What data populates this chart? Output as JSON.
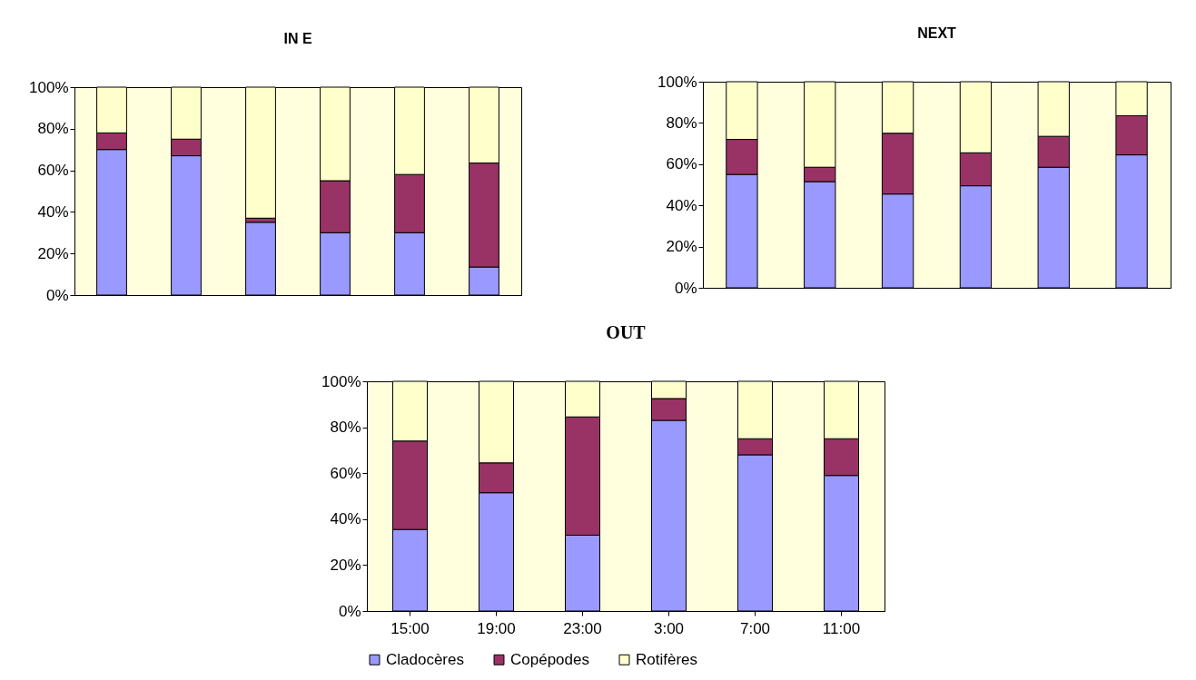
{
  "chart_data": [
    {
      "type": "bar",
      "title": "IN E",
      "stacked": true,
      "categories": [
        null,
        null,
        null,
        null,
        null,
        null
      ],
      "tick_labels": "y",
      "ylim": [
        0,
        100
      ],
      "yticks": [
        {
          "value": 0,
          "label": "0%"
        },
        {
          "value": 20,
          "label": "20%"
        },
        {
          "value": 40,
          "label": "40%"
        },
        {
          "value": 60,
          "label": "60%"
        },
        {
          "value": 80,
          "label": "80%"
        },
        {
          "value": 100,
          "label": "100%"
        }
      ],
      "series": [
        {
          "color": "#9999ff",
          "values": [
            70,
            67,
            35,
            30,
            30,
            13.5
          ]
        },
        {
          "color": "#993366",
          "values": [
            8,
            8,
            2,
            25,
            28,
            50
          ]
        },
        {
          "color": "#ffffcc",
          "values": [
            22,
            25,
            63,
            45,
            42,
            36.5
          ]
        }
      ]
    },
    {
      "type": "bar",
      "title": "NEXT",
      "stacked": true,
      "categories": [
        null,
        null,
        null,
        null,
        null,
        null
      ],
      "tick_labels": "y",
      "ylim": [
        0,
        100
      ],
      "yticks": [
        {
          "value": 0,
          "label": "0%"
        },
        {
          "value": 20,
          "label": "20%"
        },
        {
          "value": 40,
          "label": "40%"
        },
        {
          "value": 60,
          "label": "60%"
        },
        {
          "value": 80,
          "label": "80%"
        },
        {
          "value": 100,
          "label": "100%"
        }
      ],
      "series": [
        {
          "color": "#9999ff",
          "values": [
            55,
            51.5,
            45.5,
            49.5,
            58.5,
            64.5
          ]
        },
        {
          "color": "#993366",
          "values": [
            17,
            7,
            29.5,
            16,
            15,
            19
          ]
        },
        {
          "color": "#ffffcc",
          "values": [
            28,
            41.5,
            25,
            34.5,
            26.5,
            16.5
          ]
        }
      ]
    },
    {
      "type": "bar",
      "title": "OUT",
      "stacked": true,
      "categories": [
        "15:00",
        "19:00",
        "23:00",
        "3:00",
        "7:00",
        "11:00"
      ],
      "legend": "bottom",
      "ylim": [
        0,
        100
      ],
      "yticks": [
        {
          "value": 0,
          "label": "0%"
        },
        {
          "value": 20,
          "label": "20%"
        },
        {
          "value": 40,
          "label": "40%"
        },
        {
          "value": 60,
          "label": "60%"
        },
        {
          "value": 80,
          "label": "80%"
        },
        {
          "value": 100,
          "label": "100%"
        }
      ],
      "series": [
        {
          "name": "Cladocères",
          "color": "#9999ff",
          "values": [
            35.5,
            51.5,
            33,
            83,
            68,
            59
          ]
        },
        {
          "name": "Copépodes",
          "color": "#993366",
          "values": [
            38.5,
            13,
            51.5,
            9.5,
            7,
            16
          ]
        },
        {
          "name": "Rotifères",
          "color": "#ffffcc",
          "values": [
            26,
            35.5,
            15.5,
            7.5,
            25,
            25
          ]
        }
      ]
    }
  ]
}
